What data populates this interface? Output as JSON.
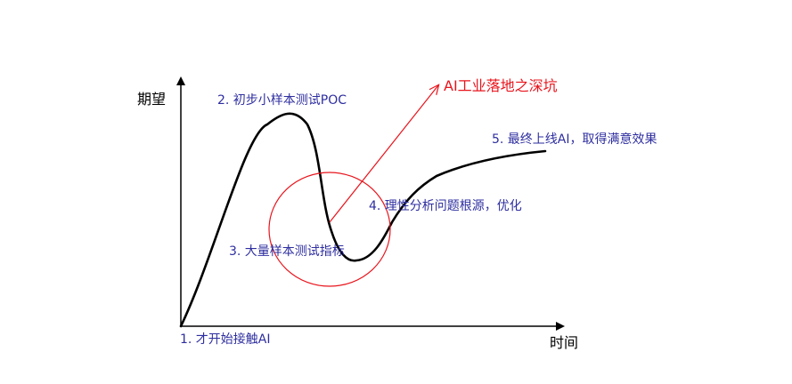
{
  "axes": {
    "y_label": "期望",
    "x_label": "时间"
  },
  "stages": {
    "s1": "1. 才开始接触AI",
    "s2": "2. 初步小样本测试POC",
    "s3": "3. 大量样本测试指标",
    "s4": "4. 理性分析问题根源，优化",
    "s5": "5. 最终上线AI，取得满意效果"
  },
  "callout": {
    "label": "AI工业落地之深坑"
  },
  "colors": {
    "axis": "#000000",
    "curve": "#000000",
    "stage_text": "#2e2ea0",
    "highlight": "#e8141c"
  }
}
